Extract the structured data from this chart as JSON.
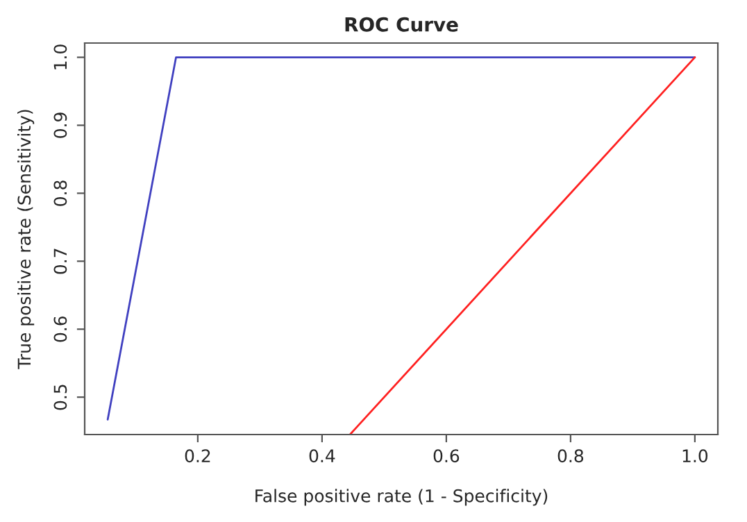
{
  "chart_data": {
    "type": "line",
    "title": "ROC Curve",
    "xlabel": "False positive rate (1 - Specificity)",
    "ylabel": "True positive rate (Sensitivity)",
    "series": [
      {
        "color": "#4040c0",
        "x": [
          0.055,
          0.165,
          1.0
        ],
        "values": [
          0.467,
          1.0,
          1.0
        ]
      },
      {
        "color": "#ff2020",
        "x": [
          0.445,
          1.0
        ],
        "values": [
          0.445,
          1.0
        ]
      }
    ],
    "xlim": [
      0.018,
      1.037
    ],
    "ylim": [
      0.445,
      1.021
    ],
    "xticks": [
      0.2,
      0.4,
      0.6,
      0.8,
      {
        "value": 1,
        "label": "1.0"
      }
    ],
    "yticks": [
      0.5,
      0.6,
      0.7,
      0.8,
      0.9,
      {
        "value": 1,
        "label": "1.0"
      }
    ],
    "grid": false,
    "legend": false
  }
}
